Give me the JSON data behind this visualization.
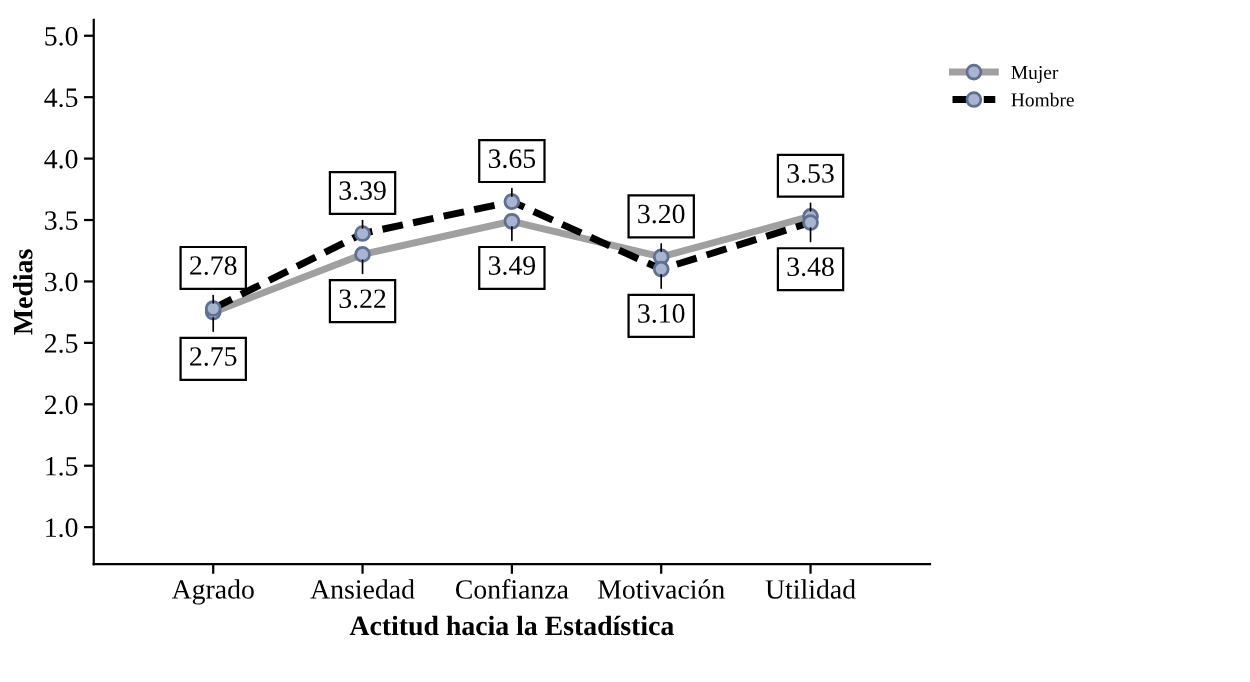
{
  "chart_data": {
    "type": "line",
    "xlabel": "Actitud hacia la Estadística",
    "ylabel": "Medias",
    "categories": [
      "Agrado",
      "Ansiedad",
      "Confianza",
      "Motivación",
      "Utilidad"
    ],
    "series": [
      {
        "name": "Mujer",
        "color": "#a0a0a0",
        "line_style": "solid",
        "values": [
          2.75,
          3.22,
          3.49,
          3.2,
          3.53
        ],
        "value_labels": [
          "2.75",
          "3.22",
          "3.49",
          "3.20",
          "3.53"
        ]
      },
      {
        "name": "Hombre",
        "color": "#000000",
        "line_style": "dashed",
        "values": [
          2.78,
          3.39,
          3.65,
          3.1,
          3.48
        ],
        "value_labels": [
          "2.78",
          "3.39",
          "3.65",
          "3.10",
          "3.48"
        ]
      }
    ],
    "ylim": [
      0.7,
      5.13
    ],
    "yticks": [
      {
        "value": 1.0,
        "label": "1.0"
      },
      {
        "value": 1.5,
        "label": "1.5"
      },
      {
        "value": 2.0,
        "label": "2.0"
      },
      {
        "value": 2.5,
        "label": "2.5"
      },
      {
        "value": 3.0,
        "label": "3.0"
      },
      {
        "value": 3.5,
        "label": "3.5"
      },
      {
        "value": 4.0,
        "label": "4.0"
      },
      {
        "value": 4.5,
        "label": "4.5"
      },
      {
        "value": 5.0,
        "label": "5.0"
      }
    ],
    "marker": "circle",
    "grid": false,
    "legend": "top right",
    "data_labels": true
  }
}
